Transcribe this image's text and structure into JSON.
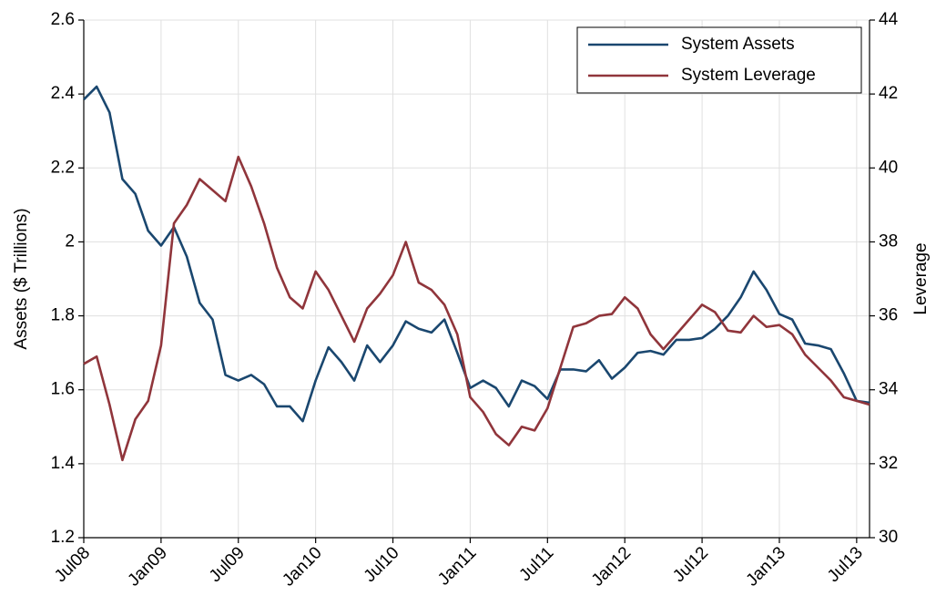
{
  "chart_data": {
    "type": "line",
    "y_label": "Assets ($ Trillions)",
    "y2_label": "Leverage",
    "categories": [
      "Jul08",
      null,
      null,
      null,
      null,
      null,
      "Jan09",
      null,
      null,
      null,
      null,
      null,
      "Jul09",
      null,
      null,
      null,
      null,
      null,
      "Jan10",
      null,
      null,
      null,
      null,
      null,
      "Jul10",
      null,
      null,
      null,
      null,
      null,
      "Jan11",
      null,
      null,
      null,
      null,
      null,
      "Jul11",
      null,
      null,
      null,
      null,
      null,
      "Jan12",
      null,
      null,
      null,
      null,
      null,
      "Jul12",
      null,
      null,
      null,
      null,
      null,
      "Jan13",
      null,
      null,
      null,
      null,
      null,
      "Jul13",
      null
    ],
    "series": [
      {
        "name": "System Assets",
        "color": "#1a476f",
        "values": [
          2.385,
          2.42,
          2.35,
          2.17,
          2.13,
          2.03,
          1.99,
          2.04,
          1.96,
          1.835,
          1.79,
          1.64,
          1.625,
          1.64,
          1.615,
          1.555,
          1.555,
          1.515,
          1.625,
          1.715,
          1.675,
          1.625,
          1.72,
          1.675,
          1.72,
          1.785,
          1.765,
          1.755,
          1.79,
          1.7,
          1.605,
          1.625,
          1.605,
          1.555,
          1.625,
          1.61,
          1.575,
          1.655,
          1.655,
          1.65,
          1.68,
          1.63,
          1.66,
          1.7,
          1.705,
          1.695,
          1.735,
          1.735,
          1.74,
          1.765,
          1.8,
          1.85,
          1.92,
          1.87,
          1.805,
          1.79,
          1.725,
          1.72,
          1.71,
          1.645,
          1.57,
          1.565
        ]
      },
      {
        "name": "System Leverage",
        "color": "#90353b",
        "axis": "y2",
        "values": [
          34.7,
          34.9,
          33.6,
          32.1,
          33.2,
          33.7,
          35.2,
          38.5,
          39.0,
          39.7,
          39.4,
          39.1,
          40.3,
          39.5,
          38.5,
          37.3,
          36.5,
          36.2,
          37.2,
          36.7,
          36.0,
          35.3,
          36.2,
          36.6,
          37.1,
          38.0,
          36.9,
          36.7,
          36.3,
          35.5,
          33.8,
          33.4,
          32.8,
          32.5,
          33.0,
          32.9,
          33.5,
          34.6,
          35.7,
          35.8,
          36.0,
          36.05,
          36.5,
          36.2,
          35.5,
          35.1,
          35.5,
          35.9,
          36.3,
          36.1,
          35.6,
          35.55,
          36.0,
          35.7,
          35.75,
          35.5,
          34.95,
          34.6,
          34.25,
          33.8,
          33.7,
          33.6
        ]
      }
    ],
    "ylim": [
      1.2,
      2.6
    ],
    "yticks": [
      1.2,
      1.4,
      1.6,
      1.8,
      2,
      2.2,
      2.4,
      2.6
    ],
    "y2lim": [
      30,
      44
    ],
    "y2ticks": [
      30,
      32,
      34,
      36,
      38,
      40,
      42,
      44
    ],
    "grid": true,
    "legend": "top-right"
  }
}
